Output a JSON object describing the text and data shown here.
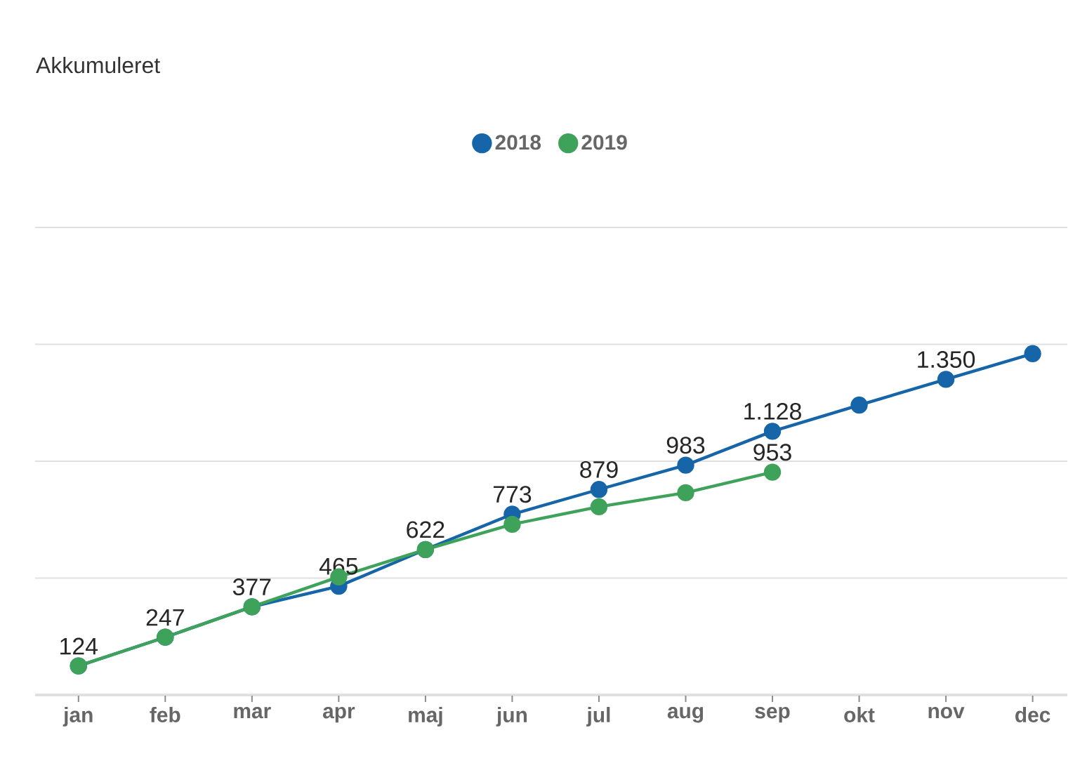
{
  "chart_data": {
    "type": "line",
    "title": "Akkumuleret",
    "categories": [
      "jan",
      "feb",
      "mar",
      "apr",
      "maj",
      "jun",
      "jul",
      "aug",
      "sep",
      "okt",
      "nov",
      "dec"
    ],
    "series": [
      {
        "name": "2018",
        "color": "#1565a8",
        "values": [
          124,
          247,
          377,
          465,
          622,
          773,
          879,
          983,
          1128,
          1240,
          1350,
          1460
        ],
        "value_labels": [
          "124",
          "247",
          "377",
          "465",
          "622",
          "773",
          "879",
          "983",
          "1.128",
          null,
          "1.350",
          null
        ]
      },
      {
        "name": "2019",
        "color": "#3fa25a",
        "values": [
          124,
          247,
          377,
          505,
          622,
          730,
          805,
          865,
          953,
          null,
          null,
          null
        ],
        "value_labels": [
          null,
          null,
          null,
          null,
          null,
          null,
          null,
          null,
          "953",
          null,
          null,
          null
        ]
      }
    ],
    "ylim": [
      0,
      2000
    ],
    "yticks": [
      {
        "value": 0,
        "label": null
      },
      {
        "value": 500,
        "label": null
      },
      {
        "value": 1000,
        "label": null
      },
      {
        "value": 1500,
        "label": null
      },
      {
        "value": 2000,
        "label": null
      }
    ],
    "tick_labels": "x",
    "grid": "y",
    "legend": "top",
    "marker": "circle",
    "line_style": "solid"
  }
}
